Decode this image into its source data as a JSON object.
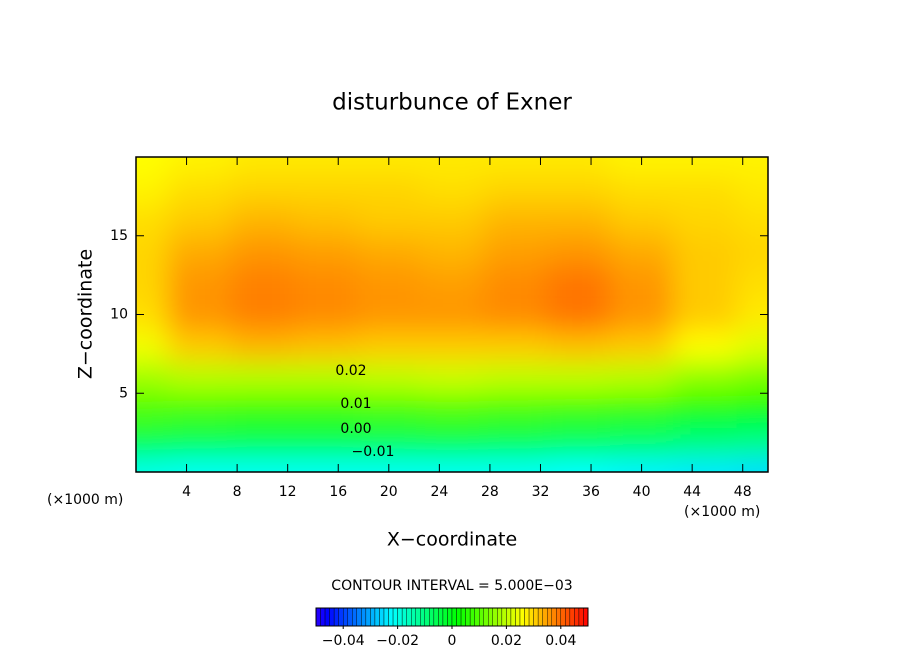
{
  "chart_data": {
    "type": "contour",
    "title": "disturbunce of Exner",
    "xlabel": "X−coordinate",
    "ylabel": "Z−coordinate",
    "x_unit_label": "(×1000 m)",
    "y_unit_label": "(×1000 m)",
    "xlim": [
      0,
      50
    ],
    "ylim": [
      0,
      20
    ],
    "xticks": [
      4,
      8,
      12,
      16,
      20,
      24,
      28,
      32,
      36,
      40,
      44,
      48
    ],
    "yticks": [
      5,
      10,
      15
    ],
    "x": [
      0,
      5,
      10,
      15,
      20,
      25,
      30,
      35,
      40,
      45,
      50
    ],
    "z": [
      0,
      2,
      4,
      6,
      8,
      10,
      12,
      14,
      16,
      18,
      20
    ],
    "values": [
      [
        -0.02,
        -0.021,
        -0.021,
        -0.021,
        -0.021,
        -0.021,
        -0.021,
        -0.022,
        -0.023,
        -0.024,
        -0.025
      ],
      [
        -0.004,
        -0.005,
        -0.005,
        -0.005,
        -0.005,
        -0.004,
        -0.005,
        -0.006,
        -0.007,
        -0.009,
        -0.01
      ],
      [
        0.009,
        0.008,
        0.007,
        0.007,
        0.008,
        0.009,
        0.008,
        0.007,
        0.006,
        0.003,
        0.002
      ],
      [
        0.017,
        0.019,
        0.019,
        0.019,
        0.02,
        0.021,
        0.02,
        0.02,
        0.019,
        0.015,
        0.013
      ],
      [
        0.025,
        0.031,
        0.033,
        0.032,
        0.031,
        0.031,
        0.031,
        0.032,
        0.031,
        0.026,
        0.023
      ],
      [
        0.029,
        0.036,
        0.038,
        0.037,
        0.036,
        0.036,
        0.037,
        0.039,
        0.036,
        0.031,
        0.028
      ],
      [
        0.03,
        0.036,
        0.038,
        0.037,
        0.036,
        0.035,
        0.037,
        0.039,
        0.036,
        0.031,
        0.029
      ],
      [
        0.03,
        0.034,
        0.036,
        0.035,
        0.034,
        0.033,
        0.035,
        0.036,
        0.034,
        0.031,
        0.03
      ],
      [
        0.029,
        0.031,
        0.033,
        0.032,
        0.031,
        0.031,
        0.033,
        0.033,
        0.031,
        0.03,
        0.029
      ],
      [
        0.027,
        0.029,
        0.03,
        0.03,
        0.03,
        0.029,
        0.03,
        0.03,
        0.029,
        0.029,
        0.028
      ],
      [
        0.026,
        0.027,
        0.028,
        0.028,
        0.028,
        0.028,
        0.028,
        0.028,
        0.027,
        0.027,
        0.027
      ]
    ],
    "contour_labels": [
      "0.02",
      "0.01",
      "0.00",
      "−0.01"
    ],
    "contour_interval_text": "CONTOUR INTERVAL = 5.000E−03",
    "clim": [
      -0.05,
      0.05
    ],
    "colorbar_ticks": [
      {
        "value": -0.04,
        "label": "−0.04"
      },
      {
        "value": -0.02,
        "label": "−0.02"
      },
      0,
      0.02,
      0.04
    ]
  }
}
